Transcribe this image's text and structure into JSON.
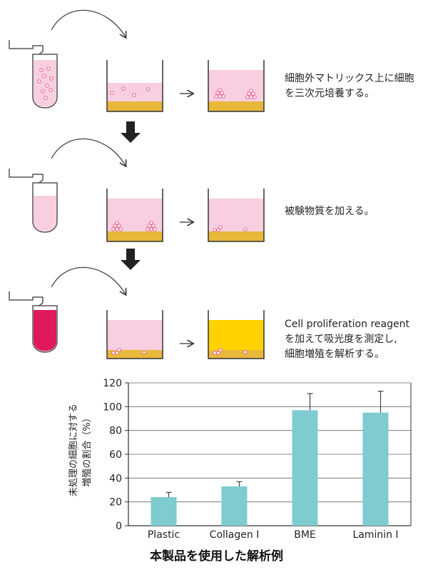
{
  "steps": [
    {
      "text_line1": "細胞外マトリックス上に細胞",
      "text_line2": "を三次元培養する。"
    },
    {
      "text_line1": "被験物質を加える。"
    },
    {
      "text_line1": "Cell proliferation reagent",
      "text_line2": "を加えて吸光度を測定し,",
      "text_line3": "細胞増殖を解析する。"
    }
  ],
  "colors": {
    "medium_pink": "#f7cfe0",
    "matrix_gold": "#e8b83a",
    "reagent_crimson": "#e0195a",
    "reagent_yellow": "#ffd200",
    "cell_pink": "#ef6f97",
    "bar_teal": "#7ecbd0"
  },
  "chart_data": {
    "type": "bar",
    "categories": [
      "Plastic",
      "Collagen Ⅰ",
      "BME",
      "Laminin Ⅰ"
    ],
    "values": [
      24,
      33,
      97,
      95
    ],
    "error_upper": [
      28,
      37,
      111,
      113
    ],
    "ylabel_line1": "未処理の細胞に対する",
    "ylabel_line2": "増殖の割合（%）",
    "ylim": [
      0,
      120
    ],
    "yticks": [
      0,
      20,
      40,
      60,
      80,
      100,
      120
    ],
    "ytick_labels": [
      "0",
      "20",
      "40",
      "60",
      "80",
      "100",
      "120"
    ],
    "grid": true,
    "title": "本製品を使用した解析例"
  }
}
